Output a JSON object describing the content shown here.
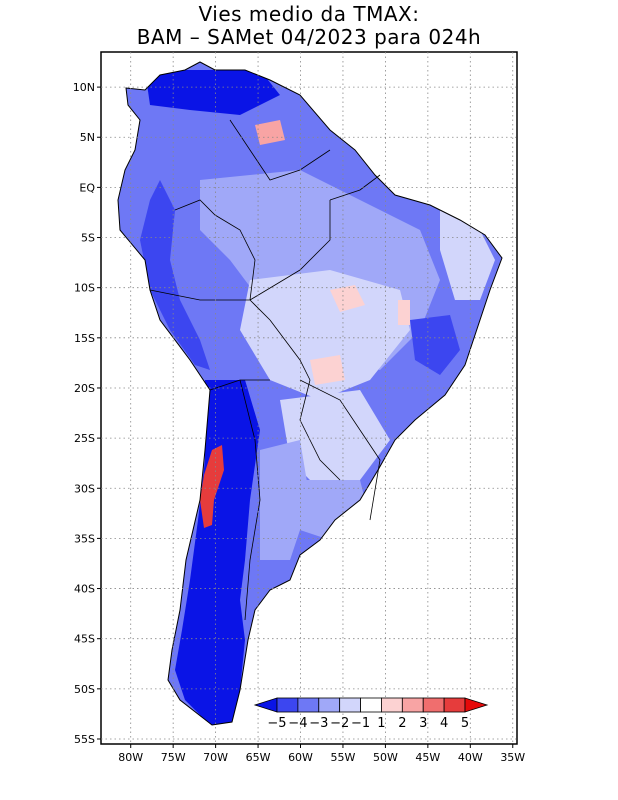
{
  "title": {
    "line1": "Vies medio da TMAX:",
    "line2": "BAM – SAMet 04/2023  para 024h"
  },
  "axes": {
    "lat_labels": [
      "10N",
      "5N",
      "EQ",
      "5S",
      "10S",
      "15S",
      "20S",
      "25S",
      "30S",
      "35S",
      "40S",
      "45S",
      "50S",
      "55S"
    ],
    "lat_values": [
      10,
      5,
      0,
      -5,
      -10,
      -15,
      -20,
      -25,
      -30,
      -35,
      -40,
      -45,
      -50,
      -55
    ],
    "lon_labels": [
      "80W",
      "75W",
      "70W",
      "65W",
      "60W",
      "55W",
      "50W",
      "45W",
      "40W",
      "35W"
    ],
    "lon_values": [
      -80,
      -75,
      -70,
      -65,
      -60,
      -55,
      -50,
      -45,
      -40,
      -35
    ],
    "lat_range": [
      -55.5,
      13.5
    ],
    "lon_range": [
      -83.5,
      -34.5
    ],
    "grid": "dotted"
  },
  "colorbar": {
    "labels": [
      "−5",
      "−4",
      "−3",
      "−2",
      "−1",
      "1",
      "2",
      "3",
      "4",
      "5"
    ],
    "levels": [
      -5,
      -4,
      -3,
      -2,
      -1,
      1,
      2,
      3,
      4,
      5
    ],
    "colors": [
      "#0a14e6",
      "#3c46f0",
      "#6e78f5",
      "#a0a8f8",
      "#d2d6fb",
      "#ffffff",
      "#fcd2d2",
      "#f8a4a4",
      "#f06e6e",
      "#e63c3c",
      "#e60a0a"
    ],
    "under_color": "#0a14e6",
    "over_color": "#e60a0a"
  }
}
